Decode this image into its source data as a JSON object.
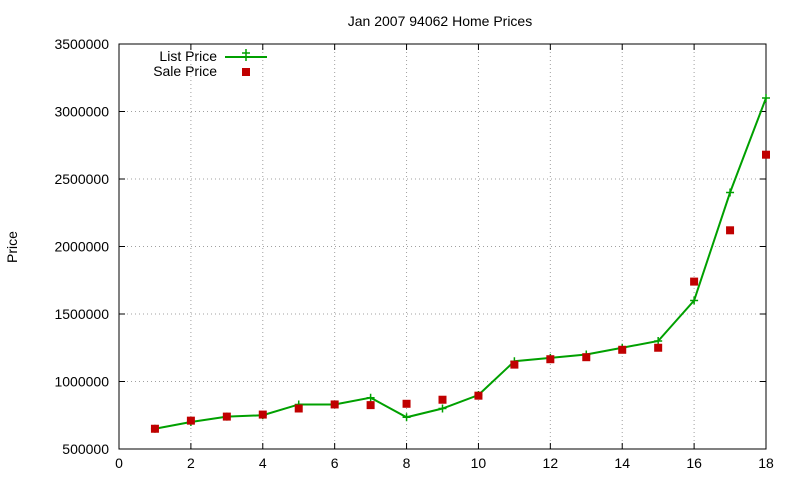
{
  "chart_data": {
    "type": "line",
    "title": "Jan 2007 94062 Home Prices",
    "xlabel": "",
    "ylabel": "Price",
    "xlim": [
      0,
      18
    ],
    "ylim": [
      500000,
      3500000
    ],
    "xticks": [
      "0",
      "2",
      "4",
      "6",
      "8",
      "10",
      "12",
      "14",
      "16",
      "18"
    ],
    "yticks": [
      "500000",
      "1000000",
      "1500000",
      "2000000",
      "2500000",
      "3000000",
      "3500000"
    ],
    "grid": true,
    "legend_position": "top-left",
    "x": [
      1,
      2,
      3,
      4,
      5,
      6,
      7,
      8,
      9,
      10,
      11,
      12,
      13,
      14,
      15,
      16,
      17,
      18
    ],
    "series": [
      {
        "name": "List Price",
        "style": "line-with-plus-markers",
        "color": "#00a000",
        "values": [
          650000,
          700000,
          740000,
          750000,
          830000,
          830000,
          880000,
          735000,
          800000,
          900000,
          1150000,
          1175000,
          1200000,
          1250000,
          1300000,
          1600000,
          2400000,
          3100000
        ]
      },
      {
        "name": "Sale Price",
        "style": "square-points",
        "color": "#c00000",
        "values": [
          650000,
          710000,
          740000,
          755000,
          800000,
          830000,
          825000,
          835000,
          865000,
          895000,
          1125000,
          1165000,
          1180000,
          1235000,
          1250000,
          1740000,
          2120000,
          2680000
        ]
      }
    ]
  }
}
